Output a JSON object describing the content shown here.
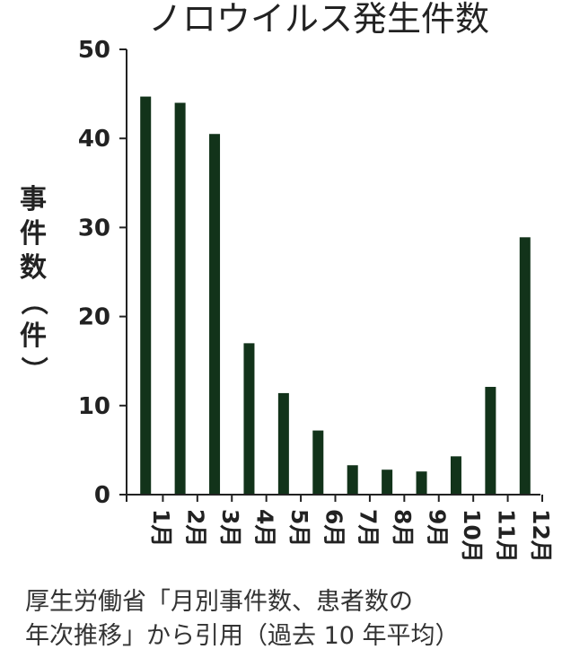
{
  "chart_data": {
    "type": "bar",
    "title": "ノロウイルス発生件数",
    "ylabel": "事件数（件）",
    "xlabel": "",
    "categories": [
      "1月",
      "2月",
      "3月",
      "4月",
      "5月",
      "6月",
      "7月",
      "8月",
      "9月",
      "10月",
      "11月",
      "12月"
    ],
    "values": [
      44.7,
      44.0,
      40.5,
      17.0,
      11.4,
      7.2,
      3.3,
      2.8,
      2.6,
      4.3,
      12.1,
      28.9
    ],
    "ylim": [
      0,
      50
    ],
    "yticks": [
      0,
      10,
      20,
      30,
      40,
      50
    ],
    "grid": false,
    "bar_color": "#12331a"
  },
  "source": {
    "line1": "厚生労働省「月別事件数、患者数の",
    "line2": "年次推移」から引用（過去 10 年平均）"
  }
}
